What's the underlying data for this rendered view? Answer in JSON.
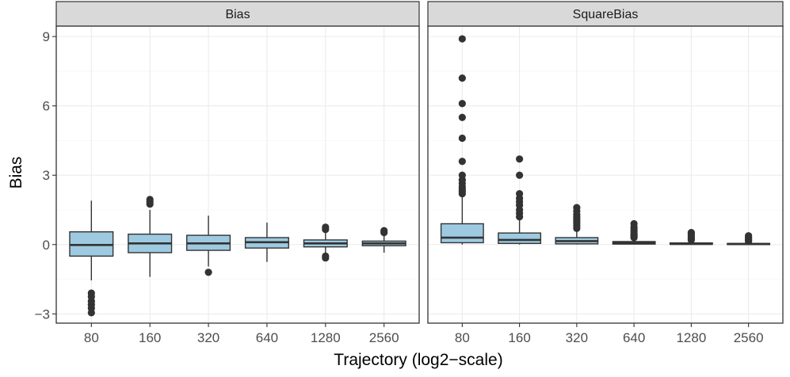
{
  "chart_data": {
    "type": "boxplot",
    "xlabel": "Trajectory (log2−scale)",
    "ylabel": "Bias",
    "ylim": [
      -3.4,
      9.45
    ],
    "yticks": [
      -3,
      0,
      3,
      6,
      9
    ],
    "ytick_labels": [
      "−3",
      "0",
      "3",
      "6",
      "9"
    ],
    "categories": [
      "80",
      "160",
      "320",
      "640",
      "1280",
      "2560"
    ],
    "grid": true,
    "box_fill": "#9ecae1",
    "outline_color": "#333333",
    "strip_fill": "#d9d9d9",
    "panels": [
      {
        "title": "Bias",
        "boxes": [
          {
            "category": "80",
            "lower_whisker": -1.55,
            "q1": -0.5,
            "median": -0.02,
            "q3": 0.55,
            "upper_whisker": 1.9,
            "outliers": [
              -2.1,
              -2.25,
              -2.45,
              -2.6,
              -2.75,
              -2.95
            ]
          },
          {
            "category": "160",
            "lower_whisker": -1.4,
            "q1": -0.35,
            "median": 0.05,
            "q3": 0.45,
            "upper_whisker": 1.5,
            "outliers": [
              1.75,
              1.85,
              1.95
            ]
          },
          {
            "category": "320",
            "lower_whisker": -0.95,
            "q1": -0.25,
            "median": 0.05,
            "q3": 0.4,
            "upper_whisker": 1.25,
            "outliers": [
              -1.2
            ]
          },
          {
            "category": "640",
            "lower_whisker": -0.75,
            "q1": -0.15,
            "median": 0.1,
            "q3": 0.3,
            "upper_whisker": 0.95,
            "outliers": []
          },
          {
            "category": "1280",
            "lower_whisker": -0.35,
            "q1": -0.1,
            "median": 0.05,
            "q3": 0.2,
            "upper_whisker": 0.55,
            "outliers": [
              0.65,
              0.75,
              -0.5,
              -0.58
            ]
          },
          {
            "category": "2560",
            "lower_whisker": -0.35,
            "q1": -0.05,
            "median": 0.05,
            "q3": 0.15,
            "upper_whisker": 0.45,
            "outliers": [
              0.52,
              0.6
            ]
          }
        ]
      },
      {
        "title": "SquareBias",
        "boxes": [
          {
            "category": "80",
            "lower_whisker": 0.0,
            "q1": 0.08,
            "median": 0.3,
            "q3": 0.9,
            "upper_whisker": 2.1,
            "outliers": [
              2.2,
              2.3,
              2.4,
              2.5,
              2.65,
              2.8,
              3.0,
              3.6,
              4.6,
              5.5,
              6.1,
              7.2,
              8.9
            ]
          },
          {
            "category": "160",
            "lower_whisker": 0.0,
            "q1": 0.05,
            "median": 0.2,
            "q3": 0.5,
            "upper_whisker": 1.1,
            "outliers": [
              1.2,
              1.35,
              1.5,
              1.7,
              1.85,
              2.0,
              2.2,
              3.0,
              3.7
            ]
          },
          {
            "category": "320",
            "lower_whisker": 0.0,
            "q1": 0.03,
            "median": 0.15,
            "q3": 0.3,
            "upper_whisker": 0.62,
            "outliers": [
              0.7,
              0.8,
              0.9,
              1.0,
              1.1,
              1.2,
              1.3,
              1.45,
              1.6
            ]
          },
          {
            "category": "640",
            "lower_whisker": 0.0,
            "q1": 0.02,
            "median": 0.07,
            "q3": 0.13,
            "upper_whisker": 0.25,
            "outliers": [
              0.3,
              0.35,
              0.4,
              0.45,
              0.55,
              0.65,
              0.75,
              0.9
            ]
          },
          {
            "category": "1280",
            "lower_whisker": 0.0,
            "q1": 0.01,
            "median": 0.03,
            "q3": 0.07,
            "upper_whisker": 0.15,
            "outliers": [
              0.2,
              0.25,
              0.3,
              0.37,
              0.45,
              0.52
            ]
          },
          {
            "category": "2560",
            "lower_whisker": 0.0,
            "q1": 0.005,
            "median": 0.02,
            "q3": 0.05,
            "upper_whisker": 0.1,
            "outliers": [
              0.14,
              0.18,
              0.22,
              0.27,
              0.32,
              0.38
            ]
          }
        ]
      }
    ]
  }
}
